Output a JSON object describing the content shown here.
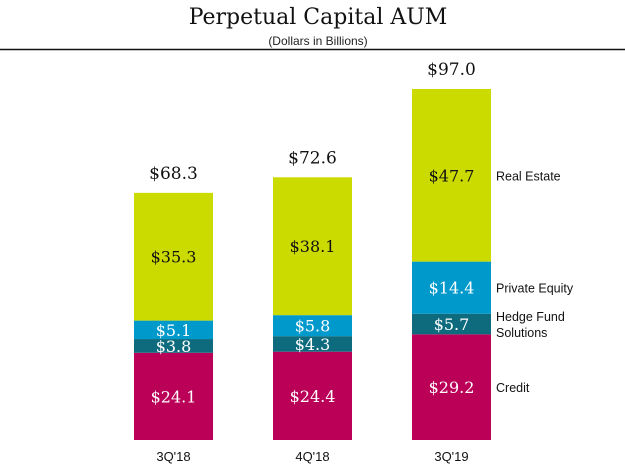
{
  "chart_data": {
    "type": "bar",
    "stacked": true,
    "title": "Perpetual Capital AUM",
    "subtitle": "(Dollars in Billions)",
    "xlabel": "",
    "ylabel": "",
    "ylim": [
      0,
      97.0
    ],
    "grid": false,
    "legend_position": "right",
    "categories": [
      "3Q'18",
      "4Q'18",
      "3Q'19"
    ],
    "totals": [
      68.3,
      72.6,
      97.0
    ],
    "total_labels": [
      "$68.3",
      "$72.6",
      "$97.0"
    ],
    "series": [
      {
        "name": "Credit",
        "color": "#bb0058",
        "label_color": "#ffffff",
        "values": [
          24.1,
          24.4,
          29.2
        ],
        "labels": [
          "$24.1",
          "$24.4",
          "$29.2"
        ]
      },
      {
        "name": "Hedge Fund Solutions",
        "legend_lines": [
          "Hedge Fund",
          "Solutions"
        ],
        "color": "#0e6b7d",
        "label_color": "#ffffff",
        "values": [
          3.8,
          4.3,
          5.7
        ],
        "labels": [
          "$3.8",
          "$4.3",
          "$5.7"
        ]
      },
      {
        "name": "Private Equity",
        "color": "#0099cc",
        "label_color": "#ffffff",
        "values": [
          5.1,
          5.8,
          14.4
        ],
        "labels": [
          "$5.1",
          "$5.8",
          "$14.4"
        ]
      },
      {
        "name": "Real Estate",
        "color": "#cbdb00",
        "label_color": "#111111",
        "values": [
          35.3,
          38.1,
          47.7
        ],
        "labels": [
          "$35.3",
          "$38.1",
          "$47.7"
        ]
      }
    ]
  }
}
